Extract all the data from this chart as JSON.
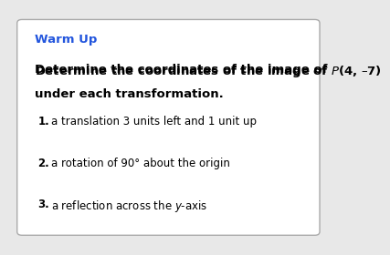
{
  "title": "Warm Up",
  "title_color": "#2255dd",
  "subtitle_line1": "Determine the coordinates of the image of  ​P(4, –7)",
  "subtitle_line2": "under each transformation.",
  "item1_bold": "1.",
  "item1_text": " a translation 3 units left and 1 unit up",
  "item2_bold": "2.",
  "item2_text": " a rotation of 90° about the origin",
  "item3_bold": "3.",
  "item3_text": " a reflection across the y-axis",
  "bg_color": "#e8e8e8",
  "box_color": "#ffffff",
  "box_edge_color": "#aaaaaa",
  "text_color": "#000000",
  "font_size_title": 9.5,
  "font_size_subtitle": 9.5,
  "font_size_items": 8.5
}
